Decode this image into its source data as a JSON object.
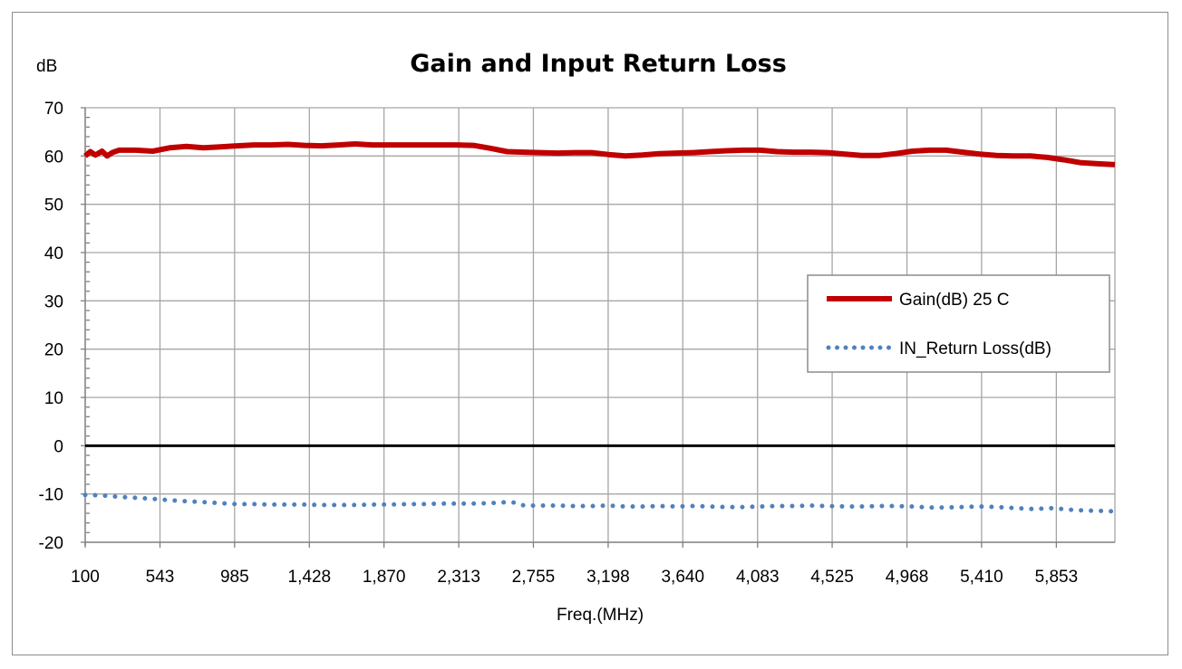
{
  "chart_data": {
    "type": "line",
    "title": "Gain and Input Return Loss",
    "ylabel": "dB",
    "xlabel": "Freq.(MHz)",
    "ylim": [
      -20,
      70
    ],
    "yticks": [
      70,
      60,
      50,
      40,
      30,
      20,
      10,
      0,
      -10,
      -20
    ],
    "xlim": [
      100,
      6200
    ],
    "xticks": [
      100,
      543,
      985,
      1428,
      1870,
      2313,
      2755,
      3198,
      3640,
      4083,
      4525,
      4968,
      5410,
      5853
    ],
    "xtick_labels": [
      "100",
      "543",
      "985",
      "1,428",
      "1,870",
      "2,313",
      "2,755",
      "3,198",
      "3,640",
      "4,083",
      "4,525",
      "4,968",
      "5,410",
      "5,853"
    ],
    "grid": true,
    "legend_position": "right",
    "series": [
      {
        "name": "Gain(dB) 25 C",
        "color": "#c00000",
        "style": "solid",
        "x": [
          100,
          130,
          160,
          200,
          230,
          260,
          300,
          400,
          500,
          600,
          700,
          800,
          900,
          1000,
          1100,
          1200,
          1300,
          1400,
          1500,
          1600,
          1700,
          1800,
          1900,
          2000,
          2100,
          2200,
          2300,
          2400,
          2500,
          2600,
          2700,
          2800,
          2900,
          3000,
          3100,
          3200,
          3300,
          3400,
          3500,
          3600,
          3700,
          3800,
          3900,
          4000,
          4100,
          4200,
          4300,
          4400,
          4500,
          4600,
          4700,
          4800,
          4900,
          5000,
          5100,
          5200,
          5300,
          5400,
          5500,
          5600,
          5700,
          5800,
          5900,
          6000,
          6100,
          6200
        ],
        "y": [
          60.0,
          60.9,
          60.2,
          61.0,
          60.0,
          60.7,
          61.2,
          61.2,
          61.0,
          61.7,
          62.0,
          61.7,
          61.9,
          62.1,
          62.3,
          62.3,
          62.4,
          62.2,
          62.1,
          62.3,
          62.5,
          62.3,
          62.3,
          62.3,
          62.3,
          62.3,
          62.3,
          62.2,
          61.6,
          60.9,
          60.8,
          60.7,
          60.6,
          60.7,
          60.7,
          60.3,
          60.0,
          60.2,
          60.5,
          60.6,
          60.7,
          60.9,
          61.1,
          61.2,
          61.2,
          60.9,
          60.8,
          60.8,
          60.7,
          60.4,
          60.1,
          60.1,
          60.5,
          61.0,
          61.2,
          61.2,
          60.8,
          60.4,
          60.1,
          60.0,
          60.0,
          59.7,
          59.2,
          58.6,
          58.4,
          58.2
        ]
      },
      {
        "name": "IN_Return Loss(dB)",
        "color": "#4f81bd",
        "style": "dotted",
        "x": [
          100,
          200,
          300,
          400,
          500,
          600,
          700,
          800,
          900,
          1000,
          1100,
          1200,
          1300,
          1400,
          1500,
          1600,
          1700,
          1800,
          1900,
          2000,
          2100,
          2200,
          2300,
          2400,
          2500,
          2600,
          2650,
          2700,
          2800,
          2900,
          3000,
          3100,
          3200,
          3300,
          3400,
          3500,
          3600,
          3700,
          3800,
          3900,
          4000,
          4100,
          4200,
          4300,
          4400,
          4500,
          4600,
          4700,
          4800,
          4900,
          5000,
          5100,
          5200,
          5300,
          5400,
          5500,
          5600,
          5700,
          5800,
          5850,
          5900,
          6000,
          6100,
          6200
        ],
        "y": [
          -10.2,
          -10.3,
          -10.6,
          -10.8,
          -11.0,
          -11.3,
          -11.5,
          -11.7,
          -11.9,
          -12.1,
          -12.1,
          -12.2,
          -12.2,
          -12.2,
          -12.3,
          -12.3,
          -12.3,
          -12.2,
          -12.2,
          -12.1,
          -12.1,
          -12.0,
          -12.0,
          -12.0,
          -11.9,
          -11.7,
          -11.8,
          -12.4,
          -12.4,
          -12.4,
          -12.5,
          -12.5,
          -12.4,
          -12.6,
          -12.6,
          -12.5,
          -12.6,
          -12.5,
          -12.6,
          -12.7,
          -12.7,
          -12.6,
          -12.5,
          -12.5,
          -12.4,
          -12.5,
          -12.6,
          -12.6,
          -12.5,
          -12.5,
          -12.6,
          -12.8,
          -12.8,
          -12.7,
          -12.6,
          -12.7,
          -12.9,
          -13.1,
          -13.0,
          -12.9,
          -13.2,
          -13.4,
          -13.5,
          -13.6
        ]
      }
    ]
  }
}
